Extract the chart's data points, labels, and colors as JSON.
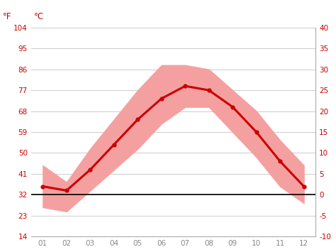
{
  "months": [
    1,
    2,
    3,
    4,
    5,
    6,
    7,
    8,
    9,
    10,
    11,
    12
  ],
  "month_labels": [
    "01",
    "02",
    "03",
    "04",
    "05",
    "06",
    "07",
    "08",
    "09",
    "10",
    "11",
    "12"
  ],
  "avg_temp": [
    2,
    1,
    6,
    12,
    18,
    23,
    26,
    25,
    21,
    15,
    8,
    2
  ],
  "max_temp": [
    7,
    3,
    11,
    18,
    25,
    31,
    31,
    30,
    25,
    20,
    13,
    7
  ],
  "min_temp": [
    -3,
    -4,
    1,
    6,
    11,
    17,
    21,
    21,
    15,
    9,
    2,
    -2
  ],
  "line_color": "#cc0000",
  "band_color": "#f5a0a0",
  "zero_line_color": "#000000",
  "label_F": "°F",
  "label_C": "°C",
  "yticks_c": [
    -10,
    -5,
    0,
    5,
    10,
    15,
    20,
    25,
    30,
    35,
    40
  ],
  "yticks_f": [
    14,
    23,
    32,
    41,
    50,
    59,
    68,
    77,
    86,
    95,
    104
  ],
  "ylim_c": [
    -10,
    40
  ],
  "xlim": [
    0.5,
    12.5
  ],
  "bg_color": "#ffffff",
  "grid_color": "#cccccc",
  "tick_color": "#cc0000",
  "xtick_color": "#888888",
  "spine_color": "#aaaaaa"
}
